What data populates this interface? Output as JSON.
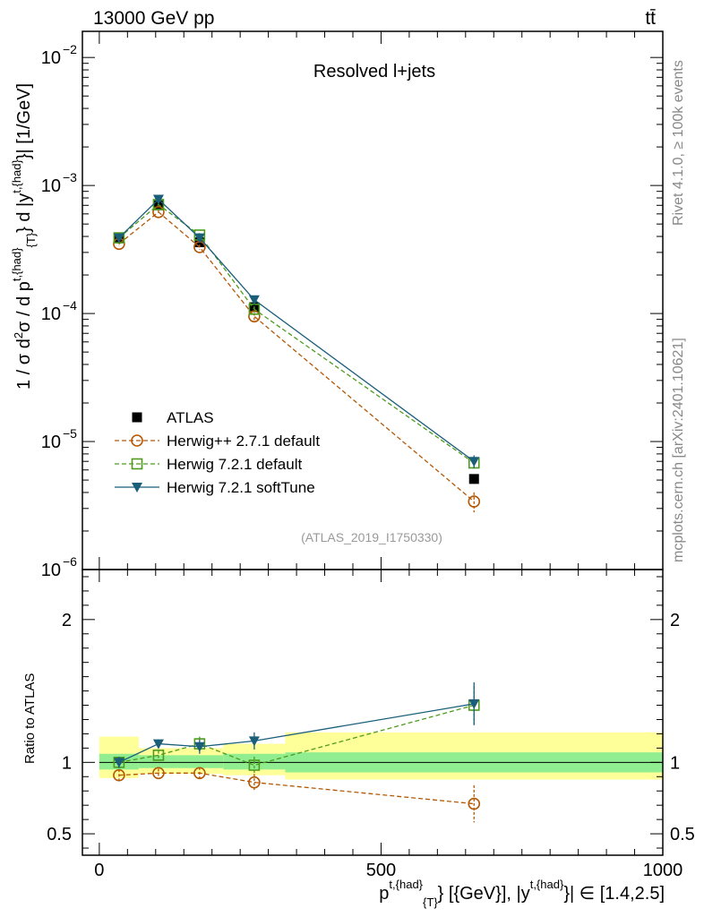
{
  "header": {
    "energy_label": "13000 GeV pp",
    "process_label": "tt̄"
  },
  "side_labels": {
    "rivet": "Rivet 4.1.0, ≥ 100k events",
    "mcplots": "mcplots.cern.ch [arXiv:2401.10621]"
  },
  "chart_data": [
    {
      "type": "line",
      "title": "Resolved l+jets",
      "watermark": "(ATLAS_2019_I1750330)",
      "yscale": "log",
      "ylim": [
        1e-06,
        0.016
      ],
      "xlim": [
        -30,
        1000
      ],
      "ylabel_parts": [
        "1 / σ d",
        "2",
        "σ / d p",
        "t,{had}",
        "{T}",
        "} d |y",
        "t,{had}",
        "}| [1/GeV]"
      ],
      "ytick_labels": [
        {
          "value": 0.01,
          "base": "10",
          "exp": "−2"
        },
        {
          "value": 0.001,
          "base": "10",
          "exp": "−3"
        },
        {
          "value": 0.0001,
          "base": "10",
          "exp": "−4"
        },
        {
          "value": 1e-05,
          "base": "10",
          "exp": "−5"
        },
        {
          "value": 1e-06,
          "base": "10",
          "exp": "−6"
        }
      ],
      "series": [
        {
          "name": "ATLAS",
          "color": "#000000",
          "marker": "square-filled",
          "dash": "none",
          "x": [
            35,
            105,
            178,
            275,
            665
          ],
          "y": [
            0.00039,
            0.0007,
            0.00036,
            0.000112,
            5.1e-06
          ],
          "err": [
            1e-05,
            2e-05,
            1e-05,
            4e-06,
            3e-07
          ]
        },
        {
          "name": "Herwig++ 2.7.1 default",
          "color": "#b35806",
          "marker": "circle-open",
          "dash": "dashed",
          "x": [
            35,
            105,
            178,
            275,
            665
          ],
          "y": [
            0.00035,
            0.00062,
            0.00033,
            9.5e-05,
            3.4e-06
          ],
          "err": [
            1.5e-05,
            2e-05,
            1.5e-05,
            6e-06,
            6e-07
          ]
        },
        {
          "name": "Herwig 7.2.1 default",
          "color": "#4d9b1c",
          "marker": "square-open",
          "dash": "dashed",
          "x": [
            35,
            105,
            178,
            275,
            665
          ],
          "y": [
            0.00039,
            0.00071,
            0.00041,
            0.000108,
            6.8e-06
          ],
          "err": [
            1.5e-05,
            2e-05,
            1.5e-05,
            6e-06,
            8e-07
          ]
        },
        {
          "name": "Herwig 7.2.1 softTune",
          "color": "#1a5e7a",
          "marker": "triangle-down-filled",
          "dash": "solid",
          "x": [
            35,
            105,
            178,
            275,
            665
          ],
          "y": [
            0.00039,
            0.00078,
            0.00039,
            0.000128,
            7e-06
          ],
          "err": [
            1.5e-05,
            2e-05,
            1.5e-05,
            6e-06,
            8e-07
          ]
        }
      ]
    },
    {
      "type": "line",
      "ylabel": "Ratio to ATLAS",
      "ylim": [
        0.35,
        2.35
      ],
      "xlim": [
        -30,
        1000
      ],
      "ytick_labels": [
        "2",
        "1",
        "0.5"
      ],
      "ytick_values": [
        2,
        1,
        0.5
      ],
      "xtick_labels": [
        "0",
        "500",
        "1000"
      ],
      "xtick_values": [
        0,
        500,
        1000
      ],
      "xlabel_parts": [
        "p",
        "t,{had}",
        "{T}",
        "} [{GeV}], |y",
        "t,{had}",
        "}| ∈ [1.4,2.5]"
      ],
      "bands": {
        "bin_edges": [
          0,
          70,
          140,
          220,
          330,
          1000
        ],
        "stat_low": [
          0.95,
          0.96,
          0.96,
          0.95,
          0.93
        ],
        "stat_high": [
          1.06,
          1.05,
          1.05,
          1.06,
          1.07
        ],
        "total_low": [
          0.89,
          0.92,
          0.92,
          0.91,
          0.88
        ],
        "total_high": [
          1.18,
          1.1,
          1.1,
          1.13,
          1.21
        ],
        "stat_color": "#90ee90",
        "total_color": "#ffff99"
      },
      "series": [
        {
          "name": "Herwig++ 2.7.1 default",
          "color": "#b35806",
          "marker": "circle-open",
          "dash": "dashed",
          "x": [
            35,
            105,
            178,
            275,
            665
          ],
          "y": [
            0.91,
            0.925,
            0.925,
            0.86,
            0.71
          ],
          "err": [
            0.04,
            0.03,
            0.04,
            0.06,
            0.13
          ]
        },
        {
          "name": "Herwig 7.2.1 default",
          "color": "#4d9b1c",
          "marker": "square-open",
          "dash": "dashed",
          "x": [
            35,
            105,
            178,
            275,
            665
          ],
          "y": [
            1.0,
            1.05,
            1.13,
            0.98,
            1.4
          ],
          "err": [
            0.04,
            0.03,
            0.05,
            0.06,
            0.13
          ]
        },
        {
          "name": "Herwig 7.2.1 softTune",
          "color": "#1a5e7a",
          "marker": "triangle-down-filled",
          "dash": "solid",
          "x": [
            35,
            105,
            178,
            275,
            665
          ],
          "y": [
            1.0,
            1.13,
            1.11,
            1.15,
            1.41
          ],
          "err": [
            0.04,
            0.03,
            0.05,
            0.06,
            0.15
          ]
        }
      ]
    }
  ]
}
